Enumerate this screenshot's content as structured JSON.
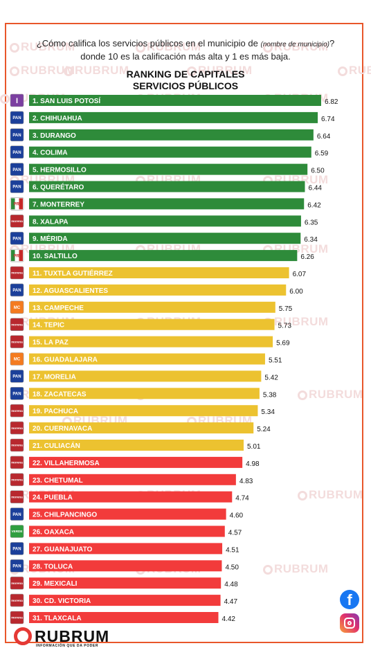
{
  "question": {
    "part1": "¿Cómo califica los servicios públicos en el municipio de ",
    "italic": "(nombre de municipio)",
    "part2": "? donde 10 es la calificación más alta y 1 es más baja."
  },
  "title_line1": "RANKING DE CAPITALES",
  "title_line2": "SERVICIOS PÚBLICOS",
  "watermark_text": "RUBRUM",
  "brand": {
    "name": "RUBRUM",
    "tagline": "INFORMACIÓN QUE DA PODER"
  },
  "social": {
    "facebook_icon": "facebook-icon",
    "instagram_icon": "instagram-icon"
  },
  "colors": {
    "green": "#2e8b3a",
    "yellow": "#ecc230",
    "red": "#f23b3b",
    "accent": "#e8562a"
  },
  "party_icons": {
    "I": {
      "bg": "#7b3fa0",
      "fg": "#ffffff",
      "text": "I"
    },
    "PAN": {
      "bg": "#1b3f9a",
      "fg": "#ffffff",
      "text": "PAN"
    },
    "PRI": {
      "bg": "#ffffff",
      "fg": "#c62828",
      "text": "PRI"
    },
    "morena": {
      "bg": "#b8282e",
      "fg": "#ffffff",
      "text": "morena"
    },
    "MC": {
      "bg": "#f47b20",
      "fg": "#ffffff",
      "text": "MC"
    },
    "PVEM": {
      "bg": "#2e9e3f",
      "fg": "#ffffff",
      "text": "VERDE"
    }
  },
  "chart_data": {
    "type": "bar",
    "orientation": "horizontal",
    "title": "RANKING DE CAPITALES SERVICIOS PÚBLICOS",
    "xlabel": "",
    "ylabel": "",
    "grid": false,
    "categories": [
      "1. SAN LUIS POTOSÍ",
      "2. CHIHUAHUA",
      "3. DURANGO",
      "4. COLIMA",
      "5. HERMOSILLO",
      "6. QUERÉTARO",
      "7. MONTERREY",
      "8. XALAPA",
      "9. MÉRIDA",
      "10. SALTILLO",
      "11. TUXTLA GUTIÉRREZ",
      "12. AGUASCALIENTES",
      "13. CAMPECHE",
      "14. TEPIC",
      "15. LA PAZ",
      "16. GUADALAJARA",
      "17. MORELIA",
      "18. ZACATECAS",
      "19. PACHUCA",
      "20. CUERNAVACA",
      "21. CULIACÁN",
      "22. VILLAHERMOSA",
      "23. CHETUMAL",
      "24. PUEBLA",
      "25. CHILPANCINGO",
      "26. OAXACA",
      "27. GUANAJUATO",
      "28. TOLUCA",
      "29. MEXICALI",
      "30. CD. VICTORIA",
      "31. TLAXCALA"
    ],
    "values": [
      6.82,
      6.74,
      6.64,
      6.59,
      6.5,
      6.44,
      6.42,
      6.35,
      6.34,
      6.26,
      6.07,
      6.0,
      5.75,
      5.73,
      5.69,
      5.51,
      5.42,
      5.38,
      5.34,
      5.24,
      5.01,
      4.98,
      4.83,
      4.74,
      4.6,
      4.57,
      4.51,
      4.5,
      4.48,
      4.47,
      4.42
    ],
    "value_labels": [
      "6.82",
      "6.74",
      "6.64",
      "6.59",
      "6.50",
      "6.44",
      "6.42",
      "6.35",
      "6.34",
      "6.26",
      "6.07",
      "6.00",
      "5.75",
      "5.73",
      "5.69",
      "5.51",
      "5.42",
      "5.38",
      "5.34",
      "5.24",
      "5.01",
      "4.98",
      "4.83",
      "4.74",
      "4.60",
      "4.57",
      "4.51",
      "4.50",
      "4.48",
      "4.47",
      "4.42"
    ],
    "bar_colors": [
      "green",
      "green",
      "green",
      "green",
      "green",
      "green",
      "green",
      "green",
      "green",
      "green",
      "yellow",
      "yellow",
      "yellow",
      "yellow",
      "yellow",
      "yellow",
      "yellow",
      "yellow",
      "yellow",
      "yellow",
      "yellow",
      "red",
      "red",
      "red",
      "red",
      "red",
      "red",
      "red",
      "red",
      "red",
      "red"
    ],
    "parties": [
      "I",
      "PAN",
      "PAN",
      "PAN",
      "PAN",
      "PAN",
      "PRI",
      "morena",
      "PAN",
      "PRI",
      "morena",
      "PAN",
      "MC",
      "morena",
      "morena",
      "MC",
      "PAN",
      "PAN",
      "morena",
      "morena",
      "morena",
      "morena",
      "morena",
      "morena",
      "PAN",
      "PVEM",
      "PAN",
      "PAN",
      "morena",
      "morena",
      "morena"
    ],
    "xlim": [
      0,
      6.82
    ]
  }
}
